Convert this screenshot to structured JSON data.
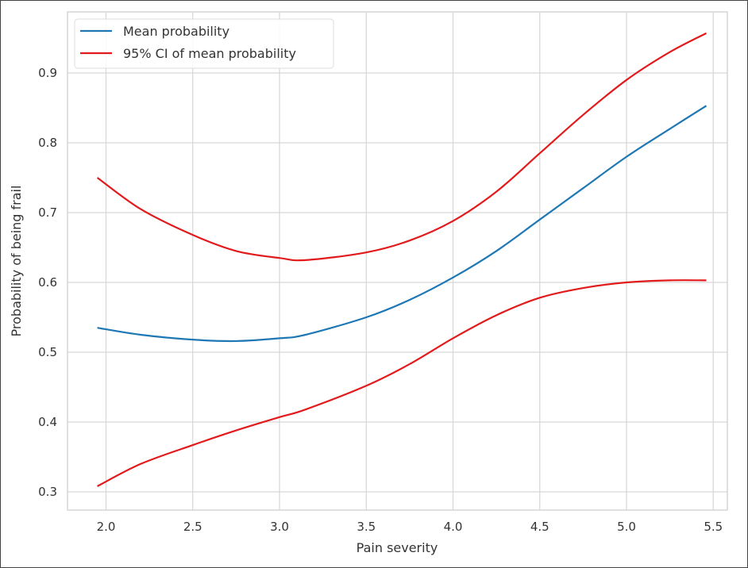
{
  "chart_data": {
    "type": "line",
    "title": "",
    "xlabel": "Pain severity",
    "ylabel": "Probability of being frail",
    "xlim": [
      1.78,
      5.6
    ],
    "ylim": [
      0.275,
      0.985
    ],
    "xticks": [
      2.0,
      2.5,
      3.0,
      3.5,
      4.0,
      4.5,
      5.0,
      5.5
    ],
    "xtick_labels": [
      "2.0",
      "2.5",
      "3.0",
      "3.5",
      "4.0",
      "4.5",
      "5.0",
      "5.5"
    ],
    "yticks": [
      0.3,
      0.4,
      0.5,
      0.6,
      0.7,
      0.8,
      0.9
    ],
    "ytick_labels": [
      "0.3",
      "0.4",
      "0.5",
      "0.6",
      "0.7",
      "0.8",
      "0.9"
    ],
    "grid": true,
    "legend": {
      "position": "top-left",
      "entries": [
        "Mean probability",
        "95% CI of mean probability"
      ]
    },
    "x": [
      1.95,
      2.2,
      2.5,
      2.75,
      3.0,
      3.15,
      3.5,
      3.75,
      4.0,
      4.25,
      4.5,
      4.75,
      5.0,
      5.25,
      5.46
    ],
    "series": [
      {
        "name": "Mean probability",
        "color": "#1f77b4",
        "values": [
          0.535,
          0.525,
          0.518,
          0.516,
          0.52,
          0.525,
          0.55,
          0.575,
          0.607,
          0.645,
          0.69,
          0.735,
          0.78,
          0.82,
          0.853
        ]
      },
      {
        "name": "95% CI of mean probability (upper)",
        "color": "#e31a1c",
        "values": [
          0.75,
          0.705,
          0.668,
          0.645,
          0.635,
          0.632,
          0.643,
          0.66,
          0.688,
          0.73,
          0.785,
          0.84,
          0.89,
          0.93,
          0.957
        ]
      },
      {
        "name": "95% CI of mean probability (lower)",
        "color": "#e31a1c",
        "values": [
          0.308,
          0.34,
          0.367,
          0.388,
          0.407,
          0.418,
          0.452,
          0.483,
          0.52,
          0.553,
          0.578,
          0.592,
          0.6,
          0.603,
          0.603
        ]
      }
    ]
  }
}
